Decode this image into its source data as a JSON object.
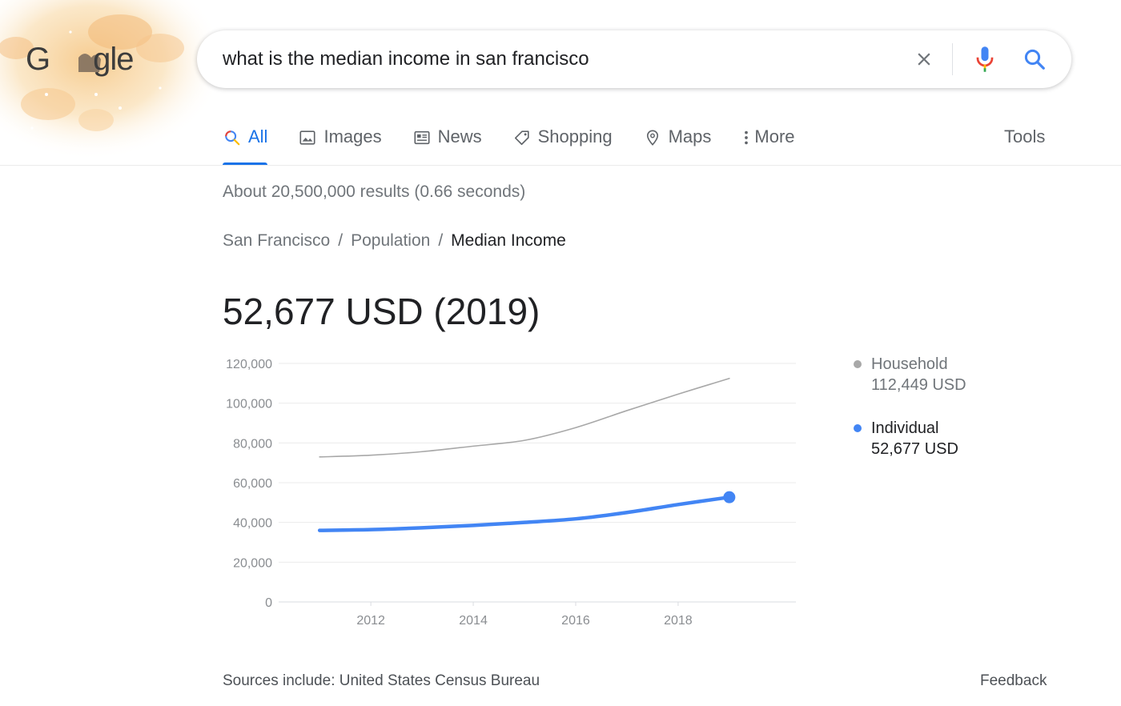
{
  "logo": {
    "text": "G",
    "text_tail": "gle"
  },
  "search": {
    "value": "what is the median income in san francisco",
    "clear_icon": "close-icon",
    "mic_icon": "mic-icon",
    "search_icon": "search-icon"
  },
  "tabs": [
    {
      "label": "All",
      "icon": "search-icon",
      "active": true
    },
    {
      "label": "Images",
      "icon": "image-icon"
    },
    {
      "label": "News",
      "icon": "news-icon"
    },
    {
      "label": "Shopping",
      "icon": "tag-icon"
    },
    {
      "label": "Maps",
      "icon": "map-pin-icon"
    },
    {
      "label": "More",
      "icon": "more-vert-icon"
    }
  ],
  "tools_label": "Tools",
  "result_stats": "About 20,500,000 results (0.66 seconds)",
  "breadcrumb": [
    {
      "label": "San Francisco"
    },
    {
      "label": "Population"
    },
    {
      "label": "Median Income",
      "current": true
    }
  ],
  "breadcrumb_sep": "/",
  "answer": "52,677 USD (2019)",
  "legend": {
    "household": {
      "name": "Household",
      "value": "112,449 USD",
      "color": "#a8a8a8"
    },
    "individual": {
      "name": "Individual",
      "value": "52,677 USD",
      "color": "#4285f4"
    }
  },
  "chart_data": {
    "type": "line",
    "x": [
      2011,
      2012,
      2013,
      2014,
      2015,
      2016,
      2017,
      2018,
      2019
    ],
    "xticks": [
      "2012",
      "2014",
      "2016",
      "2018"
    ],
    "yticks": [
      "0",
      "20,000",
      "40,000",
      "60,000",
      "80,000",
      "100,000",
      "120,000"
    ],
    "ylim": [
      0,
      120000
    ],
    "xlim": [
      2010.2,
      2020.3
    ],
    "grid": true,
    "legend_position": "right",
    "series": [
      {
        "name": "Household",
        "color": "#a8a8a8",
        "values": [
          72947,
          73802,
          75604,
          78378,
          81294,
          87701,
          96265,
          104552,
          112449
        ]
      },
      {
        "name": "Individual",
        "color": "#4285f4",
        "values": [
          36000,
          36400,
          37300,
          38500,
          40000,
          41800,
          45000,
          49000,
          52677
        ]
      }
    ]
  },
  "sources_prefix": "Sources include: ",
  "sources_link": "United States Census Bureau",
  "feedback": "Feedback"
}
